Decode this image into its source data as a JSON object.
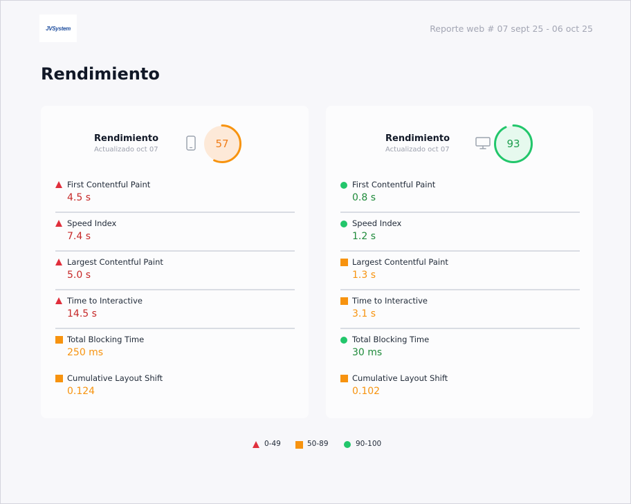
{
  "header": {
    "logo_text": "JVSystem",
    "report_title": "Reporte web # 07 sept 25 - 06 oct 25"
  },
  "page_title": "Rendimiento",
  "colors": {
    "poor": "#e02f3c",
    "poor_text": "#c62828",
    "average": "#f7930f",
    "good": "#22c66b",
    "good_text": "#1e8a3a"
  },
  "cards": [
    {
      "device": "mobile",
      "device_icon": "smartphone-icon",
      "title": "Rendimiento",
      "subtitle": "Actualizado oct 07",
      "score": "57",
      "score_rating": "average",
      "metrics": [
        {
          "label": "First Contentful Paint",
          "value": "4.5 s",
          "rating": "poor"
        },
        {
          "label": "Speed Index",
          "value": "7.4 s",
          "rating": "poor"
        },
        {
          "label": "Largest Contentful Paint",
          "value": "5.0 s",
          "rating": "poor"
        },
        {
          "label": "Time to Interactive",
          "value": "14.5 s",
          "rating": "poor"
        },
        {
          "label": "Total Blocking Time",
          "value": "250 ms",
          "rating": "average"
        },
        {
          "label": "Cumulative Layout Shift",
          "value": "0.124",
          "rating": "average"
        }
      ]
    },
    {
      "device": "desktop",
      "device_icon": "monitor-icon",
      "title": "Rendimiento",
      "subtitle": "Actualizado oct 07",
      "score": "93",
      "score_rating": "good",
      "metrics": [
        {
          "label": "First Contentful Paint",
          "value": "0.8 s",
          "rating": "good"
        },
        {
          "label": "Speed Index",
          "value": "1.2 s",
          "rating": "good"
        },
        {
          "label": "Largest Contentful Paint",
          "value": "1.3 s",
          "rating": "average"
        },
        {
          "label": "Time to Interactive",
          "value": "3.1 s",
          "rating": "average"
        },
        {
          "label": "Total Blocking Time",
          "value": "30 ms",
          "rating": "good"
        },
        {
          "label": "Cumulative Layout Shift",
          "value": "0.102",
          "rating": "average"
        }
      ]
    }
  ],
  "legend": [
    {
      "label": "0-49",
      "rating": "poor"
    },
    {
      "label": "50-89",
      "rating": "average"
    },
    {
      "label": "90-100",
      "rating": "good"
    }
  ]
}
